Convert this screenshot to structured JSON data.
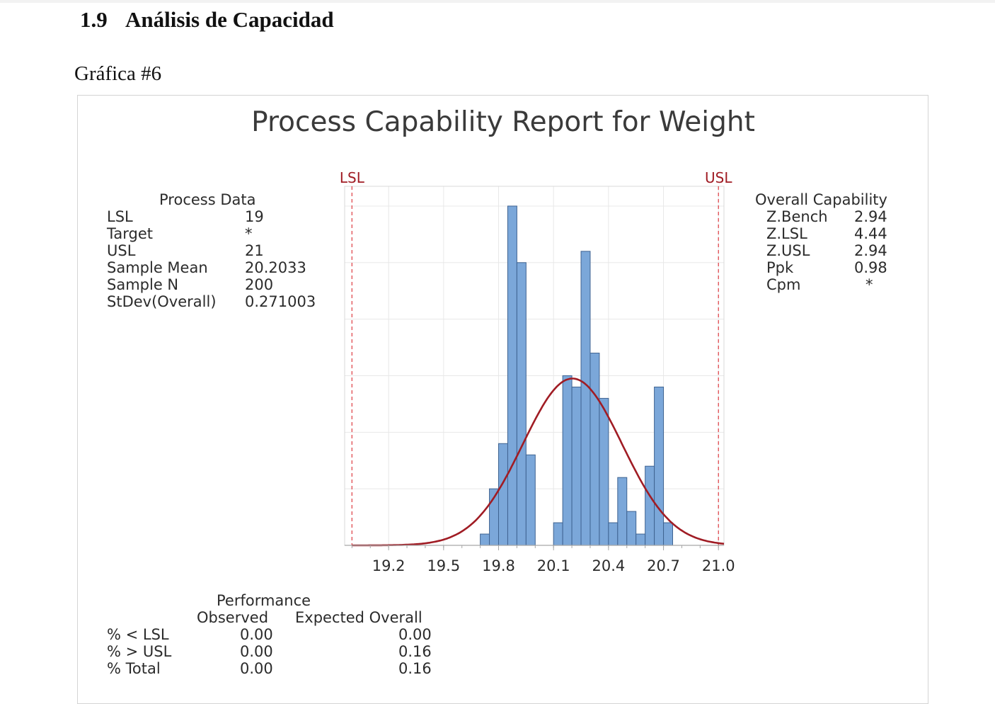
{
  "document": {
    "section_number": "1.9",
    "section_title": "Análisis de Capacidad",
    "figure_caption": "Gráfica #6"
  },
  "report": {
    "title": "Process Capability Report for Weight"
  },
  "process_data": {
    "heading": "Process Data",
    "rows": [
      {
        "label": "LSL",
        "value": "19"
      },
      {
        "label": "Target",
        "value": "*"
      },
      {
        "label": "USL",
        "value": "21"
      },
      {
        "label": "Sample Mean",
        "value": "20.2033"
      },
      {
        "label": "Sample N",
        "value": "200"
      },
      {
        "label": "StDev(Overall)",
        "value": "0.271003"
      }
    ]
  },
  "overall_capability": {
    "heading": "Overall Capability",
    "rows": [
      {
        "label": "Z.Bench",
        "value": "2.94"
      },
      {
        "label": "Z.LSL",
        "value": "4.44"
      },
      {
        "label": "Z.USL",
        "value": "2.94"
      },
      {
        "label": "Ppk",
        "value": "0.98"
      },
      {
        "label": "Cpm",
        "value": "*"
      }
    ]
  },
  "performance": {
    "heading": "Performance",
    "col_observed": "Observed",
    "col_expected": "Expected Overall",
    "rows": [
      {
        "label": "% < LSL",
        "observed": "0.00",
        "expected": "0.00"
      },
      {
        "label": "% > USL",
        "observed": "0.00",
        "expected": "0.16"
      },
      {
        "label": "% Total",
        "observed": "0.00",
        "expected": "0.16"
      }
    ]
  },
  "chart_data": {
    "type": "bar",
    "title": "Process Capability Report for Weight",
    "xlabel": "",
    "ylabel": "",
    "xlim": [
      18.96,
      21.03
    ],
    "ylim": [
      0,
      6.35
    ],
    "tick_labels": [
      "19.2",
      "19.5",
      "19.8",
      "20.1",
      "20.4",
      "20.7",
      "21.0"
    ],
    "tick_values": [
      19.2,
      19.5,
      19.8,
      20.1,
      20.4,
      20.7,
      21.0
    ],
    "bin_width": 0.05,
    "bins": [
      {
        "start": 19.7,
        "count": 0.2
      },
      {
        "start": 19.75,
        "count": 1.0
      },
      {
        "start": 19.8,
        "count": 1.8
      },
      {
        "start": 19.85,
        "count": 6.0
      },
      {
        "start": 19.9,
        "count": 5.0
      },
      {
        "start": 19.95,
        "count": 1.6
      },
      {
        "start": 20.1,
        "count": 0.4
      },
      {
        "start": 20.15,
        "count": 3.0
      },
      {
        "start": 20.2,
        "count": 2.8
      },
      {
        "start": 20.25,
        "count": 5.2
      },
      {
        "start": 20.3,
        "count": 3.4
      },
      {
        "start": 20.35,
        "count": 2.6
      },
      {
        "start": 20.4,
        "count": 0.4
      },
      {
        "start": 20.45,
        "count": 1.2
      },
      {
        "start": 20.5,
        "count": 0.6
      },
      {
        "start": 20.55,
        "count": 0.2
      },
      {
        "start": 20.6,
        "count": 1.4
      },
      {
        "start": 20.65,
        "count": 2.8
      },
      {
        "start": 20.7,
        "count": 0.4
      }
    ],
    "fit_curve": {
      "type": "normal",
      "mean": 20.2033,
      "stdev": 0.271003,
      "peak": 2.95
    },
    "spec_limits": [
      {
        "label": "LSL",
        "value": 19
      },
      {
        "label": "USL",
        "value": 21
      }
    ],
    "grid": true,
    "colors": {
      "bar": "#7ba7d9",
      "bar_edge": "#3f6391",
      "curve": "#a01c24",
      "spec": "#e0494f",
      "spec_label": "#a01c24",
      "axis": "#a6a6a6",
      "grid": "#e8e8e8"
    }
  }
}
